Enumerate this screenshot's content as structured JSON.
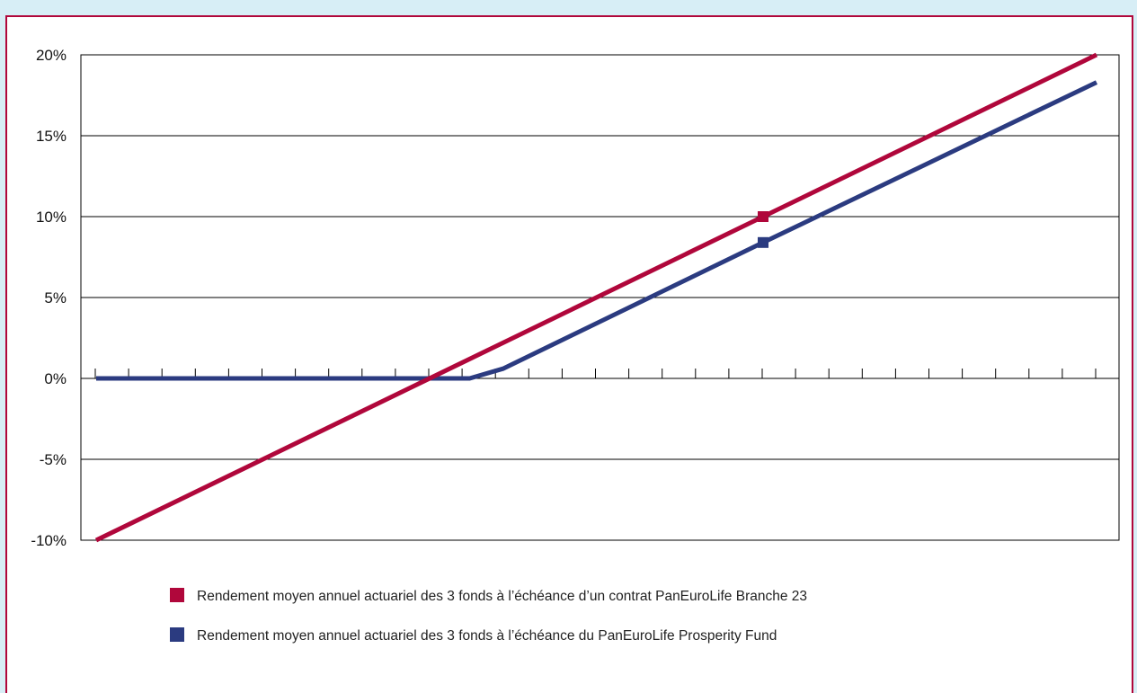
{
  "chart_data": {
    "type": "line",
    "title": "",
    "xlabel": "",
    "ylabel": "",
    "ylim": [
      -0.1,
      0.2
    ],
    "y_ticks": [
      "20%",
      "15%",
      "10%",
      "5%",
      "0%",
      "-5%",
      "-10%"
    ],
    "y_tick_values": [
      0.2,
      0.15,
      0.1,
      0.05,
      0.0,
      -0.05,
      -0.1
    ],
    "x_tick_count": 31,
    "x_range": [
      0,
      30
    ],
    "grid": "horizontal",
    "legend_position": "bottom",
    "series": [
      {
        "name": "Rendement moyen annuel actuariel des 3 fonds à l’échéance d’un contrat PanEuroLife Branche 23",
        "color": "#b0073b",
        "x": [
          0,
          30
        ],
        "y": [
          -0.1,
          0.2
        ],
        "markers": [
          {
            "x": 20,
            "y": 0.1
          }
        ]
      },
      {
        "name": "Rendement moyen annuel actuariel des 3 fonds à l’échéance du PanEuroLife Prosperity Fund",
        "color": "#2b3b80",
        "x": [
          0,
          11.2,
          12.2,
          20,
          30
        ],
        "y": [
          0.0,
          0.0,
          0.006,
          0.084,
          0.183
        ],
        "markers": [
          {
            "x": 20,
            "y": 0.084
          }
        ]
      }
    ]
  },
  "colors": {
    "background": "#d7eef6",
    "frame_border": "#b0073b",
    "series_red": "#b0073b",
    "series_blue": "#2b3b80"
  }
}
